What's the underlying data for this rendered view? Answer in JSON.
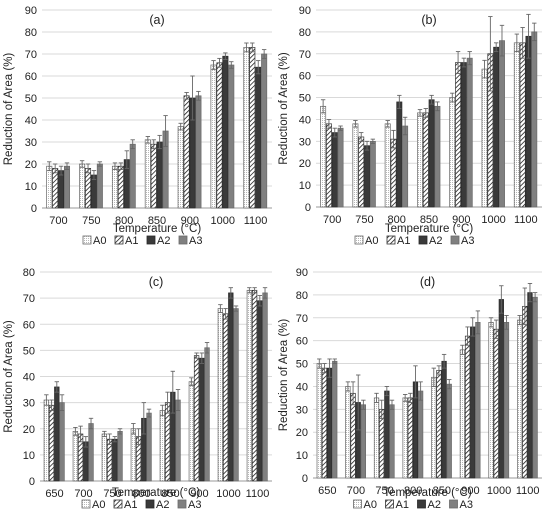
{
  "chart_data": [
    {
      "type": "bar",
      "panel_label": "(a)",
      "ylabel": "Reduction of Area (%)",
      "xlabel": "Temperature (°C)",
      "ylim": [
        0,
        90
      ],
      "yticks": [
        0,
        10,
        20,
        30,
        40,
        50,
        60,
        70,
        80,
        90
      ],
      "grid": "horizontal",
      "legend_position": "bottom",
      "categories": [
        "700",
        "750",
        "800",
        "850",
        "900",
        "1000",
        "1100"
      ],
      "series": [
        {
          "name": "A0",
          "values": [
            19,
            20,
            19,
            31,
            37,
            65,
            73
          ],
          "errors": [
            2,
            1.5,
            1.5,
            1.5,
            1.5,
            2,
            2
          ]
        },
        {
          "name": "A1",
          "values": [
            18,
            18,
            19,
            29,
            51,
            66,
            73
          ],
          "errors": [
            2,
            2,
            1.5,
            2,
            1.5,
            2,
            2
          ]
        },
        {
          "name": "A2",
          "values": [
            17,
            15,
            22,
            30,
            50,
            69,
            64
          ],
          "errors": [
            2,
            2,
            4,
            3,
            10,
            1.5,
            3
          ]
        },
        {
          "name": "A3",
          "values": [
            19,
            20,
            29,
            35,
            51,
            65,
            70
          ],
          "errors": [
            1.5,
            1,
            2,
            7,
            2,
            1.5,
            2
          ]
        }
      ]
    },
    {
      "type": "bar",
      "panel_label": "(b)",
      "ylabel": "Reduction of Area (%)",
      "xlabel": "Temperature (°C)",
      "ylim": [
        0,
        90
      ],
      "yticks": [
        0,
        10,
        20,
        30,
        40,
        50,
        60,
        70,
        80,
        90
      ],
      "grid": "horizontal",
      "legend_position": "bottom",
      "categories": [
        "700",
        "750",
        "800",
        "850",
        "900",
        "1000",
        "1100"
      ],
      "series": [
        {
          "name": "A0",
          "values": [
            46,
            38,
            38,
            43,
            50,
            63,
            75
          ],
          "errors": [
            3,
            1.5,
            1.5,
            1.5,
            2,
            4,
            4
          ]
        },
        {
          "name": "A1",
          "values": [
            38,
            32,
            31,
            43,
            66,
            70,
            75
          ],
          "errors": [
            2,
            2,
            4,
            2,
            5,
            17,
            7
          ]
        },
        {
          "name": "A2",
          "values": [
            34,
            28,
            48,
            49,
            66,
            73,
            78
          ],
          "errors": [
            2,
            2,
            3,
            2,
            2,
            2,
            10
          ]
        },
        {
          "name": "A3",
          "values": [
            36,
            30,
            37,
            46,
            68,
            76,
            80
          ],
          "errors": [
            1,
            1,
            4,
            2,
            3,
            7,
            4
          ]
        }
      ]
    },
    {
      "type": "bar",
      "panel_label": "(c)",
      "ylabel": "Reduction of Area (%)",
      "xlabel": "Temperature (°C)",
      "ylim": [
        0,
        80
      ],
      "yticks": [
        0,
        10,
        20,
        30,
        40,
        50,
        60,
        70,
        80
      ],
      "grid": "horizontal",
      "legend_position": "bottom",
      "categories": [
        "650",
        "700",
        "750",
        "800",
        "850",
        "900",
        "1000",
        "1100"
      ],
      "series": [
        {
          "name": "A0",
          "values": [
            31,
            19,
            18,
            20,
            27,
            38,
            66,
            73
          ],
          "errors": [
            2,
            1.5,
            1,
            2,
            2,
            1.5,
            1.5,
            1
          ]
        },
        {
          "name": "A1",
          "values": [
            29,
            18,
            16,
            17,
            30,
            48,
            64,
            73
          ],
          "errors": [
            2,
            3,
            2,
            3,
            4,
            1,
            2,
            1
          ]
        },
        {
          "name": "A2",
          "values": [
            36,
            15,
            16,
            24,
            34,
            47,
            72,
            69
          ],
          "errors": [
            2,
            2,
            1,
            6,
            8,
            2,
            2,
            2
          ]
        },
        {
          "name": "A3",
          "values": [
            30,
            22,
            19,
            26,
            31,
            51,
            66,
            72
          ],
          "errors": [
            3,
            2,
            1,
            1.5,
            4,
            2,
            1,
            2
          ]
        }
      ]
    },
    {
      "type": "bar",
      "panel_label": "(d)",
      "ylabel": "Reduction of Area (%)",
      "xlabel": "Temperature (°C)",
      "ylim": [
        0,
        90
      ],
      "yticks": [
        0,
        10,
        20,
        30,
        40,
        50,
        60,
        70,
        80,
        90
      ],
      "grid": "horizontal",
      "legend_position": "bottom",
      "categories": [
        "650",
        "700",
        "750",
        "800",
        "850",
        "900",
        "1000",
        "1100"
      ],
      "series": [
        {
          "name": "A0",
          "values": [
            50,
            40,
            35,
            35,
            44,
            56,
            68,
            69
          ],
          "errors": [
            2,
            2,
            2,
            1.5,
            4,
            2,
            2,
            2
          ]
        },
        {
          "name": "A1",
          "values": [
            48,
            37,
            30,
            35,
            47,
            62,
            65,
            75
          ],
          "errors": [
            2,
            5,
            4,
            2,
            2,
            4,
            4,
            8
          ]
        },
        {
          "name": "A2",
          "values": [
            48,
            33,
            38,
            42,
            51,
            66,
            78,
            81
          ],
          "errors": [
            4,
            12,
            2,
            7,
            3,
            4,
            6,
            4
          ]
        },
        {
          "name": "A3",
          "values": [
            51,
            32,
            32,
            38,
            41,
            68,
            68,
            79
          ],
          "errors": [
            1,
            2,
            2,
            4,
            2,
            5,
            3,
            2
          ]
        }
      ]
    }
  ]
}
